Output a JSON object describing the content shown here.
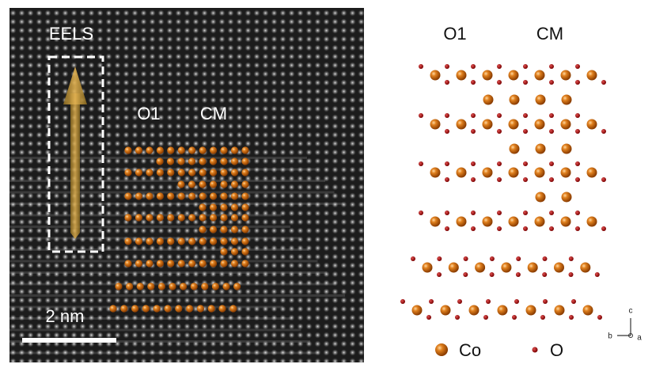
{
  "image_panel": {
    "eels_label": "EELS",
    "o1_label": "O1",
    "cm_label": "CM",
    "scale_label": "2 nm"
  },
  "structure_panel": {
    "o1_label": "O1",
    "cm_label": "CM",
    "axes": {
      "c": "c",
      "b": "b",
      "a": "a"
    },
    "legend": {
      "co": "Co",
      "o": "O"
    }
  }
}
